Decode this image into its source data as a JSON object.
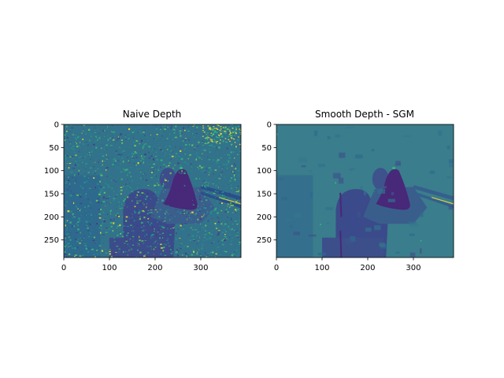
{
  "chart_data": [
    {
      "type": "heatmap",
      "title": "Naive Depth",
      "xlabel": "",
      "ylabel": "",
      "xlim": [
        0,
        388
      ],
      "ylim": [
        288,
        0
      ],
      "xticks": [
        0,
        100,
        200,
        300
      ],
      "yticks": [
        0,
        50,
        100,
        150,
        200,
        250
      ],
      "colormap": "viridis",
      "grid": false,
      "style": "noisy"
    },
    {
      "type": "heatmap",
      "title": "Smooth Depth - SGM",
      "xlabel": "",
      "ylabel": "",
      "xlim": [
        0,
        388
      ],
      "ylim": [
        288,
        0
      ],
      "xticks": [
        0,
        100,
        200,
        300
      ],
      "yticks": [
        0,
        50,
        100,
        150,
        200,
        250
      ],
      "colormap": "viridis",
      "grid": false,
      "style": "smooth"
    }
  ],
  "colors": {
    "background": "#3a7d8c",
    "mid_teal": "#2f6f8e",
    "dark_blue": "#3b4a8a",
    "dark_purple": "#482878",
    "green": "#35b779",
    "yellow": "#fde725"
  }
}
